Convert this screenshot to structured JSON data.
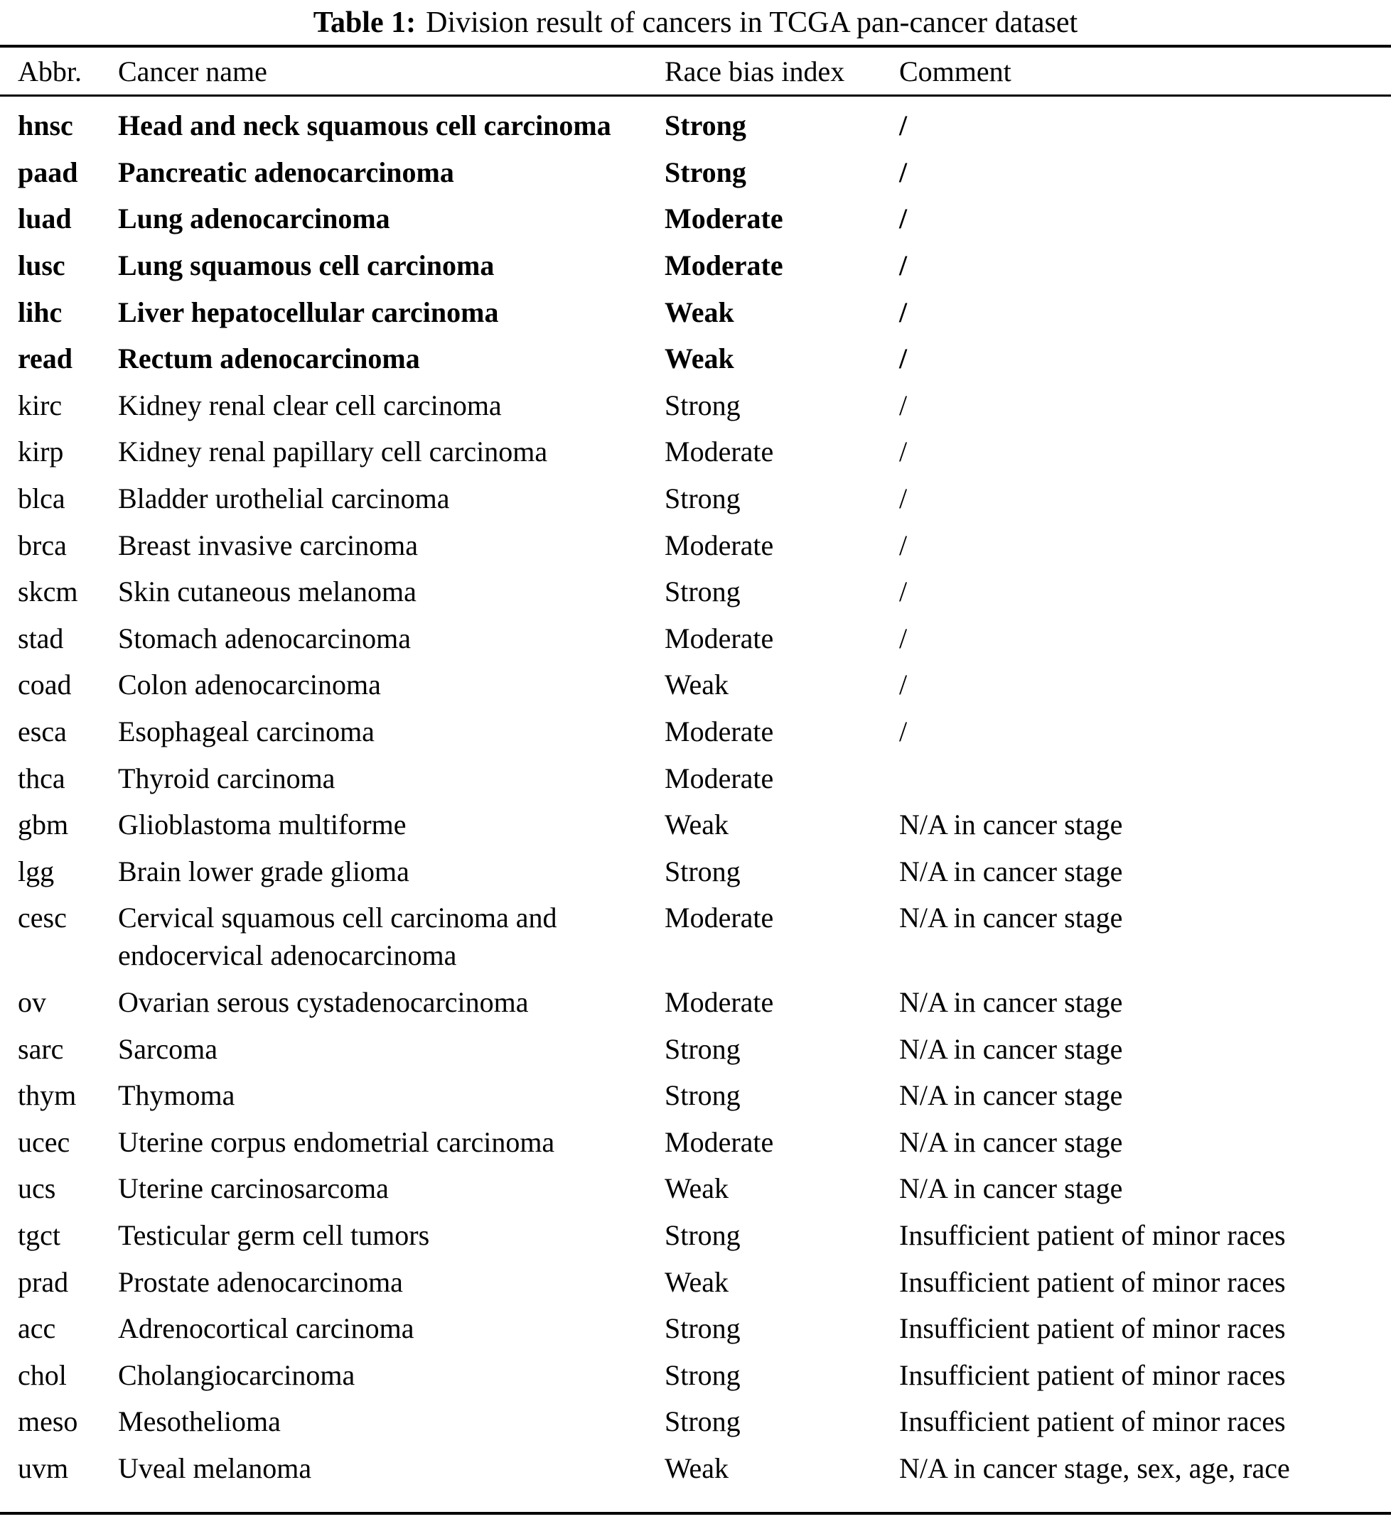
{
  "page": {
    "background": "#ffffff",
    "text_color": "#000000",
    "rule_color": "#000000"
  },
  "title": {
    "label": "Table 1:",
    "text": "Division result of cancers in TCGA pan-cancer dataset"
  },
  "table": {
    "columns": [
      "Abbr.",
      "Cancer name",
      "Race bias index",
      "Comment"
    ],
    "rows": [
      {
        "abbr": "hnsc",
        "name": "Head and neck squamous cell carcinoma",
        "bias": "Strong",
        "comment": "/",
        "bold": true
      },
      {
        "abbr": "paad",
        "name": "Pancreatic adenocarcinoma",
        "bias": "Strong",
        "comment": "/",
        "bold": true
      },
      {
        "abbr": "luad",
        "name": "Lung adenocarcinoma",
        "bias": "Moderate",
        "comment": "/",
        "bold": true
      },
      {
        "abbr": "lusc",
        "name": "Lung squamous cell carcinoma",
        "bias": "Moderate",
        "comment": "/",
        "bold": true
      },
      {
        "abbr": "lihc",
        "name": "Liver hepatocellular carcinoma",
        "bias": "Weak",
        "comment": "/",
        "bold": true
      },
      {
        "abbr": "read",
        "name": "Rectum adenocarcinoma",
        "bias": "Weak",
        "comment": "/",
        "bold": true
      },
      {
        "abbr": "kirc",
        "name": "Kidney renal clear cell carcinoma",
        "bias": "Strong",
        "comment": "/",
        "bold": false
      },
      {
        "abbr": "kirp",
        "name": "Kidney renal papillary cell carcinoma",
        "bias": "Moderate",
        "comment": "/",
        "bold": false
      },
      {
        "abbr": "blca",
        "name": "Bladder urothelial carcinoma",
        "bias": "Strong",
        "comment": "/",
        "bold": false
      },
      {
        "abbr": "brca",
        "name": "Breast invasive carcinoma",
        "bias": "Moderate",
        "comment": "/",
        "bold": false
      },
      {
        "abbr": "skcm",
        "name": "Skin cutaneous melanoma",
        "bias": "Strong",
        "comment": "/",
        "bold": false
      },
      {
        "abbr": "stad",
        "name": "Stomach adenocarcinoma",
        "bias": "Moderate",
        "comment": "/",
        "bold": false
      },
      {
        "abbr": "coad",
        "name": "Colon adenocarcinoma",
        "bias": "Weak",
        "comment": "/",
        "bold": false
      },
      {
        "abbr": "esca",
        "name": "Esophageal carcinoma",
        "bias": "Moderate",
        "comment": "/",
        "bold": false
      },
      {
        "abbr": "thca",
        "name": "Thyroid carcinoma",
        "bias": "Moderate",
        "comment": "",
        "bold": false
      },
      {
        "abbr": "gbm",
        "name": "Glioblastoma multiforme",
        "bias": "Weak",
        "comment": "N/A in cancer stage",
        "bold": false
      },
      {
        "abbr": "lgg",
        "name": "Brain lower grade glioma",
        "bias": "Strong",
        "comment": "N/A in cancer stage",
        "bold": false
      },
      {
        "abbr": "cesc",
        "name": "Cervical squamous cell carcinoma and\nendocervical adenocarcinoma",
        "bias": "Moderate",
        "comment": "N/A in cancer stage",
        "bold": false
      },
      {
        "abbr": "ov",
        "name": "Ovarian serous cystadenocarcinoma",
        "bias": "Moderate",
        "comment": "N/A in cancer stage",
        "bold": false
      },
      {
        "abbr": "sarc",
        "name": "Sarcoma",
        "bias": "Strong",
        "comment": "N/A in cancer stage",
        "bold": false
      },
      {
        "abbr": "thym",
        "name": "Thymoma",
        "bias": "Strong",
        "comment": "N/A in cancer stage",
        "bold": false
      },
      {
        "abbr": "ucec",
        "name": "Uterine corpus endometrial carcinoma",
        "bias": "Moderate",
        "comment": "N/A in cancer stage",
        "bold": false
      },
      {
        "abbr": "ucs",
        "name": "Uterine carcinosarcoma",
        "bias": "Weak",
        "comment": "N/A in cancer stage",
        "bold": false
      },
      {
        "abbr": "tgct",
        "name": "Testicular germ cell tumors",
        "bias": "Strong",
        "comment": "Insufficient patient of minor races",
        "bold": false
      },
      {
        "abbr": "prad",
        "name": "Prostate adenocarcinoma",
        "bias": "Weak",
        "comment": "Insufficient patient of minor races",
        "bold": false
      },
      {
        "abbr": "acc",
        "name": "Adrenocortical carcinoma",
        "bias": "Strong",
        "comment": "Insufficient patient of minor races",
        "bold": false
      },
      {
        "abbr": "chol",
        "name": "Cholangiocarcinoma",
        "bias": "Strong",
        "comment": "Insufficient patient of minor races",
        "bold": false
      },
      {
        "abbr": "meso",
        "name": "Mesothelioma",
        "bias": "Strong",
        "comment": "Insufficient patient of minor races",
        "bold": false
      },
      {
        "abbr": "uvm",
        "name": "Uveal melanoma",
        "bias": "Weak",
        "comment": "N/A in cancer stage, sex, age, race",
        "bold": false
      }
    ]
  }
}
